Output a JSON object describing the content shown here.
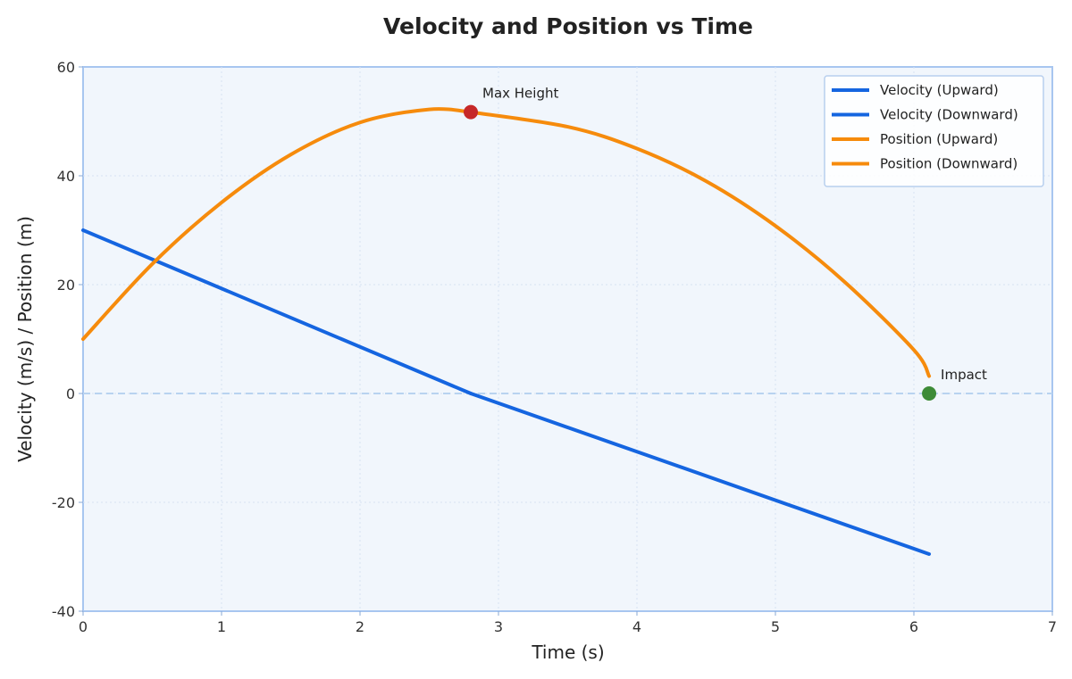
{
  "chart_data": {
    "type": "line",
    "title": "Velocity and Position vs Time",
    "xlabel": "Time (s)",
    "ylabel": "Velocity (m/s) / Position (m)",
    "xlim": [
      0,
      7
    ],
    "ylim": [
      -40,
      60
    ],
    "xticks": [
      "0",
      "1",
      "2",
      "3",
      "4",
      "5",
      "6",
      "7"
    ],
    "yticks": [
      "-40",
      "-20",
      "0",
      "20",
      "40",
      "60"
    ],
    "grid": true,
    "legend_position": "top-right",
    "series": [
      {
        "name": "Velocity (Upward)",
        "color": "#1565e0",
        "x": [
          0,
          2.8
        ],
        "y": [
          30,
          0.0
        ]
      },
      {
        "name": "Velocity (Downward)",
        "color": "#1565e0",
        "x": [
          2.8,
          6.11
        ],
        "y": [
          0.0,
          -29.5
        ]
      },
      {
        "name": "Position (Upward)",
        "color": "#f68b0c",
        "x": [
          0,
          0.5,
          1.0,
          1.5,
          2.0,
          2.5,
          2.8
        ],
        "y": [
          10,
          23.8,
          35.1,
          43.9,
          49.8,
          52.2,
          51.7
        ]
      },
      {
        "name": "Position (Downward)",
        "color": "#f68b0c",
        "x": [
          2.8,
          3.5,
          4.0,
          4.5,
          5.0,
          5.5,
          6.0,
          6.11
        ],
        "y": [
          51.7,
          49.0,
          45.0,
          39.0,
          30.8,
          20.5,
          8.0,
          3.2
        ]
      }
    ],
    "reference_line": {
      "y": 0,
      "color": "#b8d3f0"
    },
    "annotations": [
      {
        "text": "Max Height",
        "x": 2.8,
        "y": 51.7,
        "color": "#c62828"
      },
      {
        "text": "Impact",
        "x": 6.11,
        "y": 0,
        "color": "#3d8b37"
      }
    ]
  }
}
